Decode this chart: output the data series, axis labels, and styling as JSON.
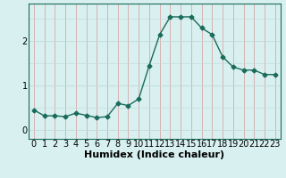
{
  "x": [
    0,
    1,
    2,
    3,
    4,
    5,
    6,
    7,
    8,
    9,
    10,
    11,
    12,
    13,
    14,
    15,
    16,
    17,
    18,
    19,
    20,
    21,
    22,
    23
  ],
  "y": [
    0.45,
    0.32,
    0.32,
    0.3,
    0.38,
    0.33,
    0.28,
    0.3,
    0.6,
    0.55,
    0.7,
    1.45,
    2.15,
    2.55,
    2.55,
    2.55,
    2.3,
    2.15,
    1.65,
    1.42,
    1.35,
    1.35,
    1.25,
    1.25
  ],
  "xlabel": "Humidex (Indice chaleur)",
  "ylabel": "",
  "xlim": [
    -0.5,
    23.5
  ],
  "ylim": [
    -0.2,
    2.85
  ],
  "yticks": [
    0,
    1,
    2
  ],
  "xticks": [
    0,
    1,
    2,
    3,
    4,
    5,
    6,
    7,
    8,
    9,
    10,
    11,
    12,
    13,
    14,
    15,
    16,
    17,
    18,
    19,
    20,
    21,
    22,
    23
  ],
  "line_color": "#1a6b5a",
  "bg_color": "#d8f0f0",
  "grid_color_vertical": "#d8a8a8",
  "grid_color_horizontal": "#c0d8d8",
  "marker": "D",
  "marker_size": 2.5,
  "line_width": 1.0,
  "xlabel_fontsize": 8,
  "tick_fontsize": 7
}
